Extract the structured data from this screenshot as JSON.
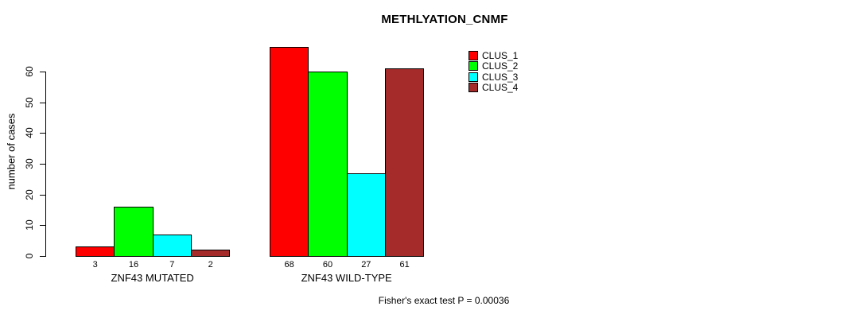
{
  "chart_data": {
    "type": "bar",
    "title": "METHLYATION_CNMF",
    "ylabel": "number of cases",
    "xlabel": "",
    "ylim": [
      0,
      60
    ],
    "yticks": [
      0,
      10,
      20,
      30,
      40,
      50,
      60
    ],
    "grid": false,
    "legend_position": "top-right",
    "background_color": "#ffffff",
    "axis_color": "#000000",
    "series": [
      {
        "name": "CLUS_1",
        "color": "#ff0000"
      },
      {
        "name": "CLUS_2",
        "color": "#00ff00"
      },
      {
        "name": "CLUS_3",
        "color": "#00ffff"
      },
      {
        "name": "CLUS_4",
        "color": "#a52a2a"
      }
    ],
    "categories": [
      "ZNF43 MUTATED",
      "ZNF43 WILD-TYPE"
    ],
    "groups": [
      {
        "label": "ZNF43 MUTATED",
        "values": [
          3,
          16,
          7,
          2
        ]
      },
      {
        "label": "ZNF43 WILD-TYPE",
        "values": [
          68,
          60,
          27,
          61
        ]
      }
    ],
    "bar_value_labels_shown": true,
    "annotation": "Fisher's exact test P = 0.00036"
  }
}
